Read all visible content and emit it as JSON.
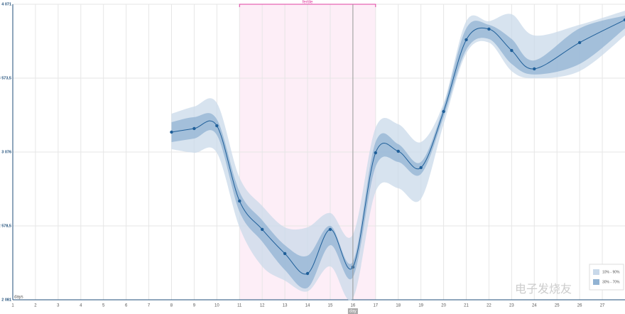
{
  "chart_data": {
    "type": "line",
    "x_label": "days",
    "x": [
      8,
      9,
      10,
      11,
      12,
      13,
      14,
      15,
      16,
      17,
      18,
      19,
      20,
      21,
      22,
      23,
      24,
      26,
      28
    ],
    "values": [
      3210,
      3234,
      3253,
      2746,
      2555,
      2392,
      2258,
      2555,
      2301,
      3071,
      3081,
      2971,
      3349,
      3832,
      3904,
      3760,
      3636,
      3813,
      3966
    ],
    "color": "#1f5f99",
    "bands": [
      {
        "name": "10% - 90%",
        "color": "#c9d9ea",
        "upper": [
          3334,
          3382,
          3406,
          2904,
          2713,
          2569,
          2569,
          2665,
          2521,
          3239,
          3263,
          3143,
          3406,
          3957,
          3957,
          4004,
          3861,
          3933,
          4028
        ],
        "lower": [
          3095,
          3071,
          3071,
          2569,
          2306,
          2210,
          2138,
          2306,
          2091,
          2808,
          2832,
          2760,
          3263,
          3741,
          3813,
          3621,
          3573,
          3621,
          3861
        ]
      },
      {
        "name": "30% - 70%",
        "color": "#92b3d3",
        "upper": [
          3277,
          3311,
          3296,
          2808,
          2617,
          2449,
          2378,
          2579,
          2339,
          3143,
          3129,
          3009,
          3382,
          3909,
          3932,
          3837,
          3693,
          3909,
          3995
        ],
        "lower": [
          3143,
          3167,
          3191,
          2674,
          2473,
          2282,
          2162,
          2449,
          2234,
          2976,
          3009,
          2928,
          3311,
          3765,
          3837,
          3669,
          3598,
          3669,
          3909
        ]
      }
    ],
    "highlight": {
      "label": "fertile",
      "from": 11,
      "to": 17,
      "color": "#e040a0"
    },
    "cursor": {
      "x": 16,
      "label": "day"
    },
    "xlim": [
      1,
      28
    ],
    "xticks": [
      1,
      2,
      3,
      4,
      5,
      6,
      7,
      8,
      9,
      10,
      11,
      12,
      13,
      14,
      15,
      16,
      17,
      18,
      19,
      20,
      21,
      22,
      23,
      24,
      25,
      26,
      27
    ],
    "ylim": [
      2081,
      4071
    ],
    "yticks": [
      {
        "value": 2081,
        "label": "2 081"
      },
      {
        "value": 2578.5,
        "label": "2 578,5"
      },
      {
        "value": 3076,
        "label": "3 076"
      },
      {
        "value": 3573.5,
        "label": "3 573,5"
      },
      {
        "value": 4071,
        "label": "4 071"
      }
    ],
    "grid": true,
    "watermark": "电子发烧友"
  }
}
